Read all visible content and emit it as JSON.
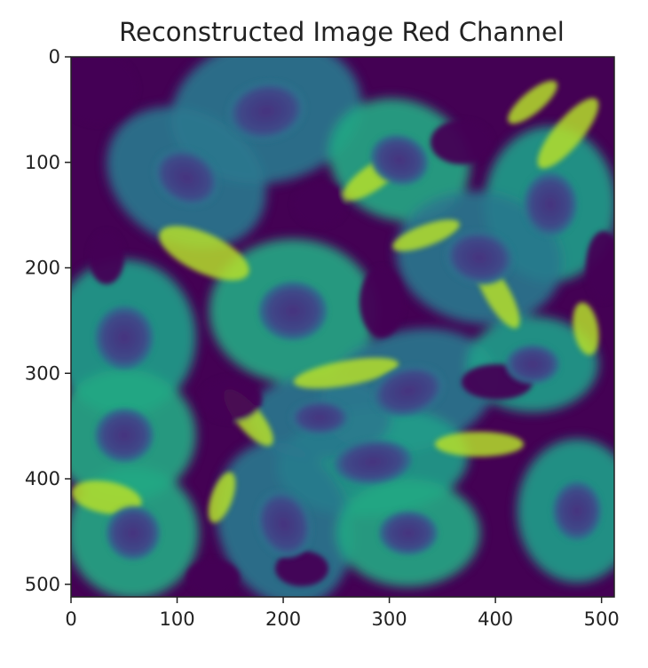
{
  "chart_data": {
    "type": "heatmap",
    "title": "Reconstructed Image Red Channel",
    "xlabel": "",
    "ylabel": "",
    "image_size": [
      512,
      512
    ],
    "xlim": [
      0,
      512
    ],
    "ylim": [
      512,
      0
    ],
    "colormap": "viridis",
    "colorbar": false,
    "grid": false,
    "x_ticks": [
      0,
      100,
      200,
      300,
      400,
      500
    ],
    "y_ticks": [
      0,
      100,
      200,
      300,
      400,
      500
    ],
    "x_tick_labels": [
      "0",
      "100",
      "200",
      "300",
      "400",
      "500"
    ],
    "y_tick_labels": [
      "0",
      "100",
      "200",
      "300",
      "400",
      "500"
    ],
    "content_description": "Fluorescence microscopy image of cells rendered with viridis colormap: dark purple background gaps, teal cytoplasm, bright yellow-green cell edges, darker oval nuclei."
  },
  "colors": {
    "viridis_low": "#440154",
    "viridis_mid": "#21918c",
    "viridis_high": "#fde725",
    "axis": "#222222",
    "background": "#ffffff"
  }
}
